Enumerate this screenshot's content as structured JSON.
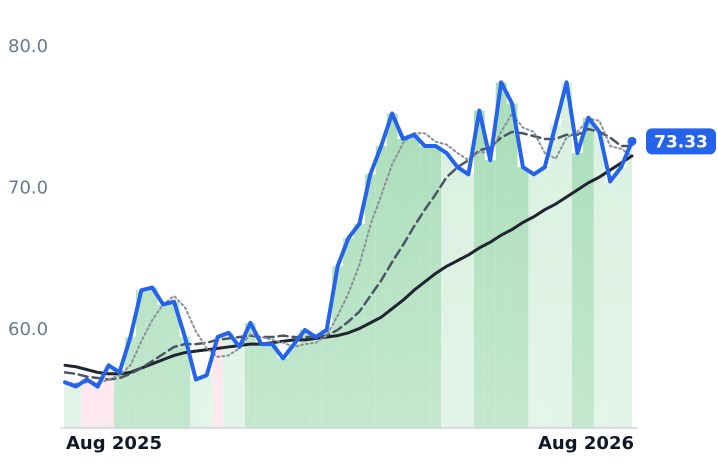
{
  "chart_data": {
    "type": "line",
    "categories": [
      "Aug 2025",
      null,
      null,
      null,
      null,
      null,
      null,
      null,
      null,
      null,
      null,
      null,
      null,
      null,
      null,
      null,
      null,
      null,
      null,
      null,
      null,
      null,
      null,
      null,
      null,
      null,
      null,
      null,
      null,
      null,
      null,
      null,
      null,
      null,
      null,
      null,
      null,
      null,
      null,
      null,
      null,
      null,
      null,
      null,
      null,
      null,
      null,
      null,
      null,
      null,
      null,
      null,
      "Aug 2026"
    ],
    "series": [
      {
        "color": "#2563eb",
        "style": "solid",
        "width": 4,
        "values": [
          56.3,
          56.0,
          56.5,
          56.0,
          57.5,
          57.0,
          59.5,
          62.8,
          63.0,
          61.8,
          62.0,
          59.5,
          56.5,
          56.8,
          59.5,
          59.8,
          58.8,
          60.5,
          59.0,
          59.0,
          58.0,
          59.0,
          60.0,
          59.5,
          60.0,
          64.5,
          66.5,
          67.5,
          71.0,
          73.0,
          75.3,
          73.5,
          73.8,
          73.0,
          73.0,
          72.5,
          71.5,
          71.0,
          75.5,
          72.0,
          77.5,
          76.0,
          71.5,
          71.0,
          71.5,
          74.5,
          77.5,
          72.5,
          75.0,
          74.0,
          70.5,
          71.5,
          73.33
        ]
      },
      {
        "color": "#8a909b",
        "style": "dotted",
        "width": 2,
        "values": [
          56.3,
          56.2,
          56.3,
          56.2,
          56.5,
          56.8,
          57.5,
          59.2,
          60.7,
          61.8,
          62.4,
          61.6,
          59.9,
          58.7,
          58.1,
          58.2,
          58.7,
          59.7,
          59.5,
          59.3,
          59.1,
          58.8,
          59.0,
          59.1,
          59.6,
          61.0,
          62.6,
          64.6,
          67.4,
          69.5,
          71.7,
          73.2,
          73.9,
          73.9,
          73.3,
          73.1,
          72.5,
          72.0,
          72.6,
          72.5,
          74.0,
          75.3,
          74.3,
          74.0,
          72.5,
          72.1,
          73.6,
          74.0,
          74.9,
          74.8,
          73.0,
          72.8,
          72.3
        ]
      },
      {
        "color": "#4b5563",
        "style": "dashed",
        "width": 2.5,
        "values": [
          57.0,
          56.9,
          56.7,
          56.6,
          56.5,
          56.6,
          56.9,
          57.3,
          57.8,
          58.3,
          58.8,
          59.0,
          59.0,
          59.1,
          59.3,
          59.4,
          59.5,
          59.6,
          59.5,
          59.5,
          59.6,
          59.5,
          59.5,
          59.5,
          59.6,
          60.0,
          60.6,
          61.3,
          62.4,
          63.5,
          64.8,
          66.0,
          67.3,
          68.5,
          69.6,
          70.8,
          71.5,
          72.0,
          72.7,
          72.9,
          73.6,
          74.0,
          73.9,
          73.7,
          73.5,
          73.5,
          73.8,
          73.8,
          74.2,
          74.0,
          73.6,
          73.0,
          73.0
        ]
      },
      {
        "color": "#1f2430",
        "style": "solid",
        "width": 3,
        "values": [
          57.5,
          57.4,
          57.2,
          57.0,
          56.9,
          56.9,
          57.0,
          57.3,
          57.6,
          57.9,
          58.2,
          58.4,
          58.5,
          58.6,
          58.7,
          58.8,
          58.9,
          59.0,
          59.0,
          59.1,
          59.2,
          59.3,
          59.3,
          59.4,
          59.5,
          59.6,
          59.8,
          60.1,
          60.5,
          60.9,
          61.5,
          62.1,
          62.8,
          63.4,
          64.0,
          64.5,
          64.9,
          65.3,
          65.8,
          66.2,
          66.7,
          67.1,
          67.6,
          68.0,
          68.5,
          68.9,
          69.4,
          69.9,
          70.4,
          70.8,
          71.3,
          71.8,
          72.3
        ]
      }
    ],
    "column_colors": [
      "#d5efdd",
      "#d5efdd",
      "#fbdde6",
      "#fbdde6",
      "#fbdde6",
      "#a3dbb4",
      "#a3dbb4",
      "#a3dbb4",
      "#a3dbb4",
      "#a3dbb4",
      "#a3dbb4",
      "#a3dbb4",
      "#d5efdd",
      "#d5efdd",
      "#fbdde6",
      "#d5efdd",
      "#d5efdd",
      "#a3dbb4",
      "#a3dbb4",
      "#a3dbb4",
      "#a3dbb4",
      "#a3dbb4",
      "#a3dbb4",
      "#a3dbb4",
      "#a3dbb4",
      "#a3dbb4",
      "#a3dbb4",
      "#a3dbb4",
      "#a3dbb4",
      "#a3dbb4",
      "#a3dbb4",
      "#a3dbb4",
      "#a3dbb4",
      "#a3dbb4",
      "#a3dbb4",
      "#d5efdd",
      "#d5efdd",
      "#d5efdd",
      "#a3dbb4",
      "#a3dbb4",
      "#a3dbb4",
      "#a3dbb4",
      "#a3dbb4",
      "#d5efdd",
      "#d5efdd",
      "#d5efdd",
      "#d5efdd",
      "#a3dbb4",
      "#a3dbb4",
      "#d5efdd",
      "#d5efdd",
      "#d5efdd",
      "#d5efdd"
    ],
    "ylim": [
      53.07,
      83.32
    ],
    "yticks": [
      {
        "value": 60,
        "label": "60.0"
      },
      {
        "value": 70,
        "label": "70.0"
      },
      {
        "value": 80,
        "label": "80.0"
      }
    ]
  }
}
